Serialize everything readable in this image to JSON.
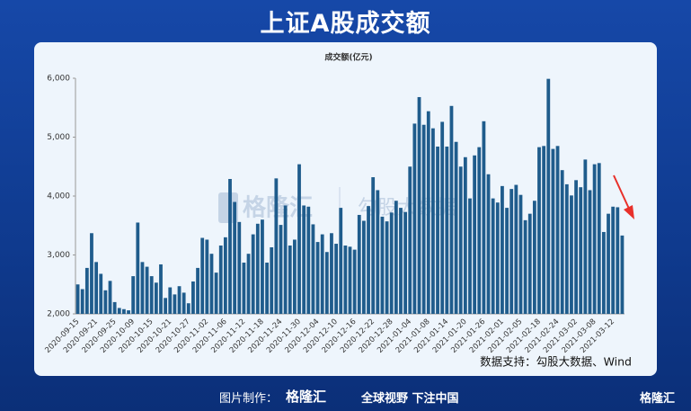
{
  "header": {
    "title": "上证A股成交额"
  },
  "watermark": [
    "格隆汇",
    "勾股大数据"
  ],
  "footer": {
    "made_by": "图片制作：",
    "brand": "格隆汇",
    "slogan": "全球视野 下注中国",
    "corner": "格隆汇"
  },
  "chart_data": {
    "type": "bar",
    "title": "成交额(亿元)",
    "source": "数据支持：勾股大数据、Wind",
    "color": "#1f5c8c",
    "categories": [
      "2020-09-15",
      null,
      null,
      null,
      "2020-09-21",
      null,
      null,
      null,
      "2020-09-25",
      null,
      null,
      null,
      "2020-10-09",
      null,
      null,
      null,
      "2020-10-15",
      null,
      null,
      null,
      "2020-10-21",
      null,
      null,
      null,
      "2020-10-27",
      null,
      null,
      null,
      "2020-11-02",
      null,
      null,
      null,
      "2020-11-06",
      null,
      null,
      null,
      "2020-11-12",
      null,
      null,
      null,
      "2020-11-18",
      null,
      null,
      null,
      "2020-11-24",
      null,
      null,
      null,
      "2020-11-30",
      null,
      null,
      null,
      "2020-12-04",
      null,
      null,
      null,
      "2020-12-10",
      null,
      null,
      null,
      "2020-12-16",
      null,
      null,
      null,
      "2020-12-22",
      null,
      null,
      null,
      "2020-12-28",
      null,
      null,
      null,
      "2021-01-04",
      null,
      null,
      null,
      "2021-01-08",
      null,
      null,
      null,
      "2021-01-14",
      null,
      null,
      null,
      "2021-01-20",
      null,
      null,
      null,
      "2021-01-26",
      null,
      null,
      null,
      "2021-02-01",
      null,
      null,
      null,
      "2021-02-05",
      null,
      null,
      null,
      "2021-02-18",
      null,
      null,
      null,
      "2021-02-24",
      null,
      null,
      null,
      "2021-03-02",
      null,
      null,
      null,
      "2021-03-08",
      null,
      null,
      null,
      "2021-03-12",
      null,
      null
    ],
    "values": [
      2500,
      2420,
      2780,
      3370,
      2880,
      2680,
      2400,
      2560,
      2200,
      2100,
      2080,
      2060,
      2640,
      3550,
      2880,
      2800,
      2640,
      2530,
      2840,
      2270,
      2450,
      2330,
      2470,
      2360,
      2180,
      2550,
      2780,
      3290,
      3260,
      3020,
      2700,
      3160,
      3300,
      4290,
      3900,
      3560,
      2870,
      3020,
      3350,
      3530,
      3600,
      2870,
      3130,
      4300,
      3510,
      3840,
      3160,
      3260,
      4540,
      3840,
      3820,
      3520,
      3220,
      3350,
      3050,
      3370,
      3190,
      3800,
      3160,
      3140,
      3090,
      3680,
      3580,
      3830,
      4320,
      4100,
      3650,
      3570,
      3720,
      3920,
      3800,
      3730,
      4500,
      5230,
      5680,
      5210,
      5440,
      5150,
      4840,
      5260,
      4840,
      5530,
      4920,
      4500,
      4660,
      3960,
      4690,
      4830,
      5270,
      4370,
      3960,
      3890,
      4170,
      3800,
      4120,
      4190,
      4020,
      3590,
      3700,
      3920,
      4830,
      4850,
      5990,
      4800,
      4850,
      4440,
      4200,
      4010,
      4270,
      4150,
      4620,
      4100,
      4540,
      4560,
      3390,
      3700,
      3820,
      3810,
      3330
    ],
    "ylim": [
      2000,
      6000
    ],
    "yticks": [
      {
        "value": 2000,
        "label": "2,000"
      },
      {
        "value": 3000,
        "label": "3,000"
      },
      {
        "value": 4000,
        "label": "4,000"
      },
      {
        "value": 5000,
        "label": "5,000"
      },
      {
        "value": 6000,
        "label": "6,000"
      }
    ]
  }
}
